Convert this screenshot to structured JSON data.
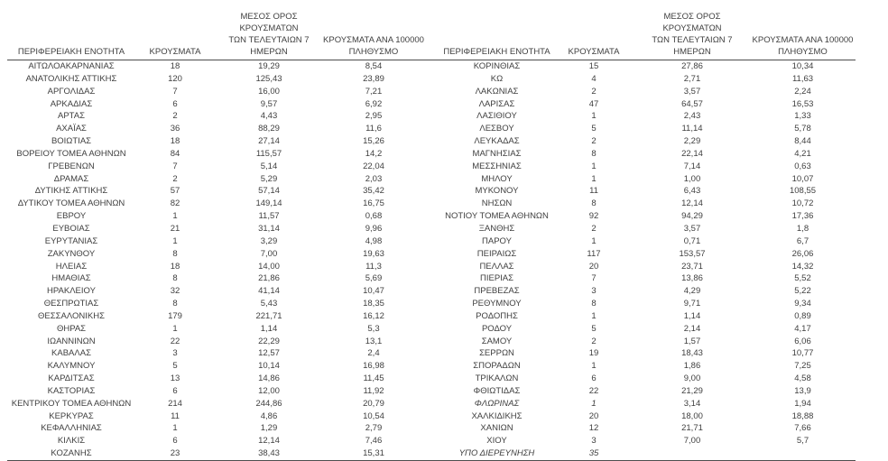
{
  "page": {
    "background": "#ffffff",
    "text_color": "#3f3f3f",
    "line_color": "#4d4d4d"
  },
  "columns": {
    "region": "ΠΕΡΙΦΕΡΕΙΑΚΗ ΕΝΟΤΗΤΑ",
    "cases": "ΚΡΟΥΣΜΑΤΑ",
    "avg_7d": "ΜΕΣΟΣ ΟΡΟΣ ΚΡΟΥΣΜΑΤΩΝ\nΤΩΝ ΤΕΛΕΥΤΑΙΩΝ 7\nΗΜΕΡΩΝ",
    "per_100k": "ΚΡΟΥΣΜΑΤΑ ΑΝΑ 100000\nΠΛΗΘΥΣΜΟ"
  },
  "left_table": {
    "rows": [
      {
        "region": "ΑΙΤΩΛΟΑΚΑΡΝΑΝΙΑΣ",
        "cases": "18",
        "avg_7d": "19,29",
        "per_100k": "8,54"
      },
      {
        "region": "ΑΝΑΤΟΛΙΚΗΣ ΑΤΤΙΚΗΣ",
        "cases": "120",
        "avg_7d": "125,43",
        "per_100k": "23,89"
      },
      {
        "region": "ΑΡΓΟΛΙΔΑΣ",
        "cases": "7",
        "avg_7d": "16,00",
        "per_100k": "7,21"
      },
      {
        "region": "ΑΡΚΑΔΙΑΣ",
        "cases": "6",
        "avg_7d": "9,57",
        "per_100k": "6,92"
      },
      {
        "region": "ΑΡΤΑΣ",
        "cases": "2",
        "avg_7d": "4,43",
        "per_100k": "2,95"
      },
      {
        "region": "ΑΧΑΪΑΣ",
        "cases": "36",
        "avg_7d": "88,29",
        "per_100k": "11,6"
      },
      {
        "region": "ΒΟΙΩΤΙΑΣ",
        "cases": "18",
        "avg_7d": "27,14",
        "per_100k": "15,26"
      },
      {
        "region": "ΒΟΡΕΙΟΥ ΤΟΜΕΑ ΑΘΗΝΩΝ",
        "cases": "84",
        "avg_7d": "115,57",
        "per_100k": "14,2"
      },
      {
        "region": "ΓΡΕΒΕΝΩΝ",
        "cases": "7",
        "avg_7d": "5,14",
        "per_100k": "22,04"
      },
      {
        "region": "ΔΡΑΜΑΣ",
        "cases": "2",
        "avg_7d": "5,29",
        "per_100k": "2,03"
      },
      {
        "region": "ΔΥΤΙΚΗΣ ΑΤΤΙΚΗΣ",
        "cases": "57",
        "avg_7d": "57,14",
        "per_100k": "35,42"
      },
      {
        "region": "ΔΥΤΙΚΟΥ ΤΟΜΕΑ ΑΘΗΝΩΝ",
        "cases": "82",
        "avg_7d": "149,14",
        "per_100k": "16,75"
      },
      {
        "region": "ΕΒΡΟΥ",
        "cases": "1",
        "avg_7d": "11,57",
        "per_100k": "0,68"
      },
      {
        "region": "ΕΥΒΟΙΑΣ",
        "cases": "21",
        "avg_7d": "31,14",
        "per_100k": "9,96"
      },
      {
        "region": "ΕΥΡΥΤΑΝΙΑΣ",
        "cases": "1",
        "avg_7d": "3,29",
        "per_100k": "4,98"
      },
      {
        "region": "ΖΑΚΥΝΘΟΥ",
        "cases": "8",
        "avg_7d": "7,00",
        "per_100k": "19,63"
      },
      {
        "region": "ΗΛΕΙΑΣ",
        "cases": "18",
        "avg_7d": "14,00",
        "per_100k": "11,3"
      },
      {
        "region": "ΗΜΑΘΙΑΣ",
        "cases": "8",
        "avg_7d": "21,86",
        "per_100k": "5,69"
      },
      {
        "region": "ΗΡΑΚΛΕΙΟΥ",
        "cases": "32",
        "avg_7d": "41,14",
        "per_100k": "10,47"
      },
      {
        "region": "ΘΕΣΠΡΩΤΙΑΣ",
        "cases": "8",
        "avg_7d": "5,43",
        "per_100k": "18,35"
      },
      {
        "region": "ΘΕΣΣΑΛΟΝΙΚΗΣ",
        "cases": "179",
        "avg_7d": "221,71",
        "per_100k": "16,12"
      },
      {
        "region": "ΘΗΡΑΣ",
        "cases": "1",
        "avg_7d": "1,14",
        "per_100k": "5,3"
      },
      {
        "region": "ΙΩΑΝΝΙΝΩΝ",
        "cases": "22",
        "avg_7d": "22,29",
        "per_100k": "13,1"
      },
      {
        "region": "ΚΑΒΑΛΑΣ",
        "cases": "3",
        "avg_7d": "12,57",
        "per_100k": "2,4"
      },
      {
        "region": "ΚΑΛΥΜΝΟΥ",
        "cases": "5",
        "avg_7d": "10,14",
        "per_100k": "16,98"
      },
      {
        "region": "ΚΑΡΔΙΤΣΑΣ",
        "cases": "13",
        "avg_7d": "14,86",
        "per_100k": "11,45"
      },
      {
        "region": "ΚΑΣΤΟΡΙΑΣ",
        "cases": "6",
        "avg_7d": "12,00",
        "per_100k": "11,92"
      },
      {
        "region": "ΚΕΝΤΡΙΚΟΥ ΤΟΜΕΑ ΑΘΗΝΩΝ",
        "cases": "214",
        "avg_7d": "244,86",
        "per_100k": "20,79"
      },
      {
        "region": "ΚΕΡΚΥΡΑΣ",
        "cases": "11",
        "avg_7d": "4,86",
        "per_100k": "10,54"
      },
      {
        "region": "ΚΕΦΑΛΛΗΝΙΑΣ",
        "cases": "1",
        "avg_7d": "1,29",
        "per_100k": "2,79"
      },
      {
        "region": "ΚΙΛΚΙΣ",
        "cases": "6",
        "avg_7d": "12,14",
        "per_100k": "7,46"
      },
      {
        "region": "ΚΟΖΑΝΗΣ",
        "cases": "23",
        "avg_7d": "38,43",
        "per_100k": "15,31"
      }
    ]
  },
  "right_table": {
    "rows": [
      {
        "region": "ΚΟΡΙΝΘΙΑΣ",
        "cases": "15",
        "avg_7d": "27,86",
        "per_100k": "10,34"
      },
      {
        "region": "ΚΩ",
        "cases": "4",
        "avg_7d": "2,71",
        "per_100k": "11,63"
      },
      {
        "region": "ΛΑΚΩΝΙΑΣ",
        "cases": "2",
        "avg_7d": "3,57",
        "per_100k": "2,24"
      },
      {
        "region": "ΛΑΡΙΣΑΣ",
        "cases": "47",
        "avg_7d": "64,57",
        "per_100k": "16,53"
      },
      {
        "region": "ΛΑΣΙΘΙΟΥ",
        "cases": "1",
        "avg_7d": "2,43",
        "per_100k": "1,33"
      },
      {
        "region": "ΛΕΣΒΟΥ",
        "cases": "5",
        "avg_7d": "11,14",
        "per_100k": "5,78"
      },
      {
        "region": "ΛΕΥΚΑΔΑΣ",
        "cases": "2",
        "avg_7d": "2,29",
        "per_100k": "8,44"
      },
      {
        "region": "ΜΑΓΝΗΣΙΑΣ",
        "cases": "8",
        "avg_7d": "22,14",
        "per_100k": "4,21"
      },
      {
        "region": "ΜΕΣΣΗΝΙΑΣ",
        "cases": "1",
        "avg_7d": "7,14",
        "per_100k": "0,63"
      },
      {
        "region": "ΜΗΛΟΥ",
        "cases": "1",
        "avg_7d": "1,00",
        "per_100k": "10,07"
      },
      {
        "region": "ΜΥΚΟΝΟΥ",
        "cases": "11",
        "avg_7d": "6,43",
        "per_100k": "108,55"
      },
      {
        "region": "ΝΗΣΩΝ",
        "cases": "8",
        "avg_7d": "12,14",
        "per_100k": "10,72"
      },
      {
        "region": "ΝΟΤΙΟΥ ΤΟΜΕΑ ΑΘΗΝΩΝ",
        "cases": "92",
        "avg_7d": "94,29",
        "per_100k": "17,36"
      },
      {
        "region": "ΞΑΝΘΗΣ",
        "cases": "2",
        "avg_7d": "3,57",
        "per_100k": "1,8"
      },
      {
        "region": "ΠΑΡΟΥ",
        "cases": "1",
        "avg_7d": "0,71",
        "per_100k": "6,7"
      },
      {
        "region": "ΠΕΙΡΑΙΩΣ",
        "cases": "117",
        "avg_7d": "153,57",
        "per_100k": "26,06"
      },
      {
        "region": "ΠΕΛΛΑΣ",
        "cases": "20",
        "avg_7d": "23,71",
        "per_100k": "14,32"
      },
      {
        "region": "ΠΙΕΡΙΑΣ",
        "cases": "7",
        "avg_7d": "13,86",
        "per_100k": "5,52"
      },
      {
        "region": "ΠΡΕΒΕΖΑΣ",
        "cases": "3",
        "avg_7d": "4,29",
        "per_100k": "5,22"
      },
      {
        "region": "ΡΕΘΥΜΝΟΥ",
        "cases": "8",
        "avg_7d": "9,71",
        "per_100k": "9,34"
      },
      {
        "region": "ΡΟΔΟΠΗΣ",
        "cases": "1",
        "avg_7d": "1,14",
        "per_100k": "0,89"
      },
      {
        "region": "ΡΟΔΟΥ",
        "cases": "5",
        "avg_7d": "2,14",
        "per_100k": "4,17"
      },
      {
        "region": "ΣΑΜΟΥ",
        "cases": "2",
        "avg_7d": "1,57",
        "per_100k": "6,06"
      },
      {
        "region": "ΣΕΡΡΩΝ",
        "cases": "19",
        "avg_7d": "18,43",
        "per_100k": "10,77"
      },
      {
        "region": "ΣΠΟΡΑΔΩΝ",
        "cases": "1",
        "avg_7d": "1,86",
        "per_100k": "7,25"
      },
      {
        "region": "ΤΡΙΚΑΛΩΝ",
        "cases": "6",
        "avg_7d": "9,00",
        "per_100k": "4,58"
      },
      {
        "region": "ΦΘΙΩΤΙΔΑΣ",
        "cases": "22",
        "avg_7d": "21,29",
        "per_100k": "13,9"
      },
      {
        "region": "ΦΛΩΡΙΝΑΣ",
        "cases": "1",
        "avg_7d": "3,14",
        "per_100k": "1,94",
        "italic": true
      },
      {
        "region": "ΧΑΛΚΙΔΙΚΗΣ",
        "cases": "20",
        "avg_7d": "18,00",
        "per_100k": "18,88"
      },
      {
        "region": "ΧΑΝΙΩΝ",
        "cases": "12",
        "avg_7d": "21,71",
        "per_100k": "7,66"
      },
      {
        "region": "ΧΙΟΥ",
        "cases": "3",
        "avg_7d": "7,00",
        "per_100k": "5,7"
      },
      {
        "region": "ΥΠΟ ΔΙΕΡΕΥΝΗΣΗ",
        "cases": "35",
        "avg_7d": "",
        "per_100k": "",
        "italic": true
      }
    ]
  }
}
